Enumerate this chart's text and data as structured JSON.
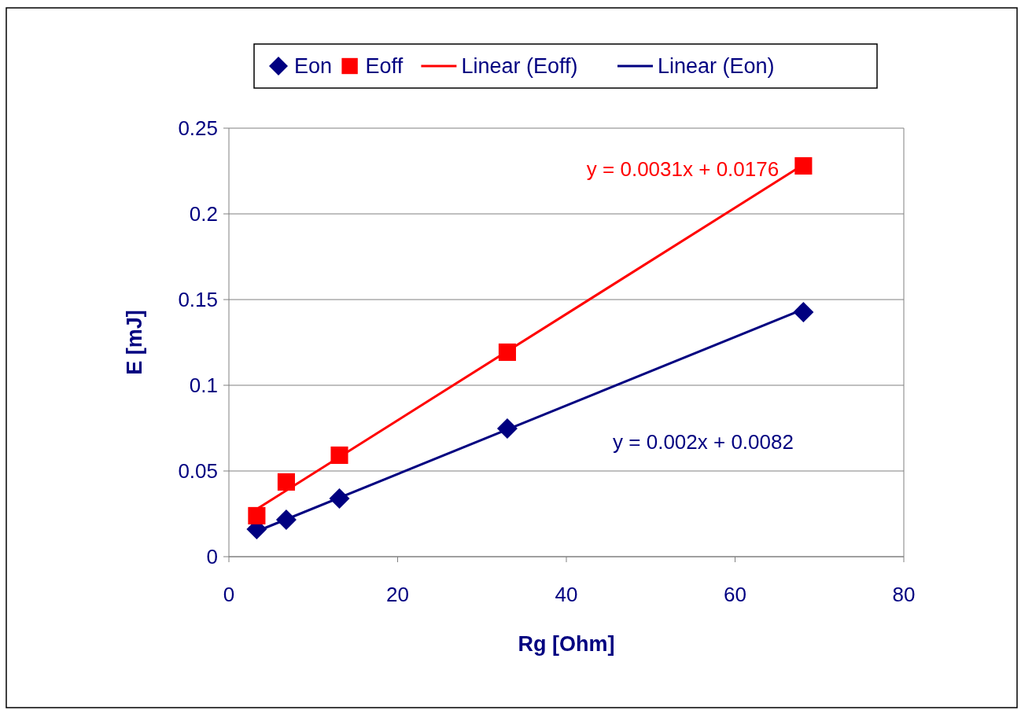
{
  "chart_data": {
    "type": "scatter",
    "xlabel": "Rg [Ohm]",
    "ylabel": "E [mJ]",
    "xlim": [
      0,
      80
    ],
    "xticks": [
      0,
      20,
      40,
      60,
      80
    ],
    "ylim": [
      0,
      0.25
    ],
    "yticks": [
      0,
      0.05,
      0.1,
      0.15,
      0.2,
      0.25
    ],
    "grid": "y",
    "legend": "top",
    "series": [
      {
        "name": "Eon",
        "color": "#000080",
        "marker": "diamond",
        "x": [
          3.3,
          6.8,
          13.1,
          33,
          68.1
        ],
        "values": [
          0.016,
          0.0216,
          0.034,
          0.0748,
          0.1427
        ]
      },
      {
        "name": "Eoff",
        "color": "#ff0000",
        "marker": "square",
        "x": [
          3.3,
          6.8,
          13.1,
          33,
          68.1
        ],
        "values": [
          0.0239,
          0.0436,
          0.0592,
          0.1193,
          0.228
        ]
      },
      {
        "name": "Linear (Eoff)",
        "type": "line",
        "color": "#ff0000",
        "marker": "none",
        "x": [
          3.3,
          68.1
        ],
        "values": [
          0.0278,
          0.2287
        ]
      },
      {
        "name": "Linear (Eon)",
        "type": "line",
        "color": "#000080",
        "marker": "none",
        "x": [
          3.3,
          68.1
        ],
        "values": [
          0.0148,
          0.1444
        ]
      }
    ],
    "annotations": [
      "y = 0.0031x + 0.0176",
      "y = 0.002x + 0.0082"
    ]
  }
}
